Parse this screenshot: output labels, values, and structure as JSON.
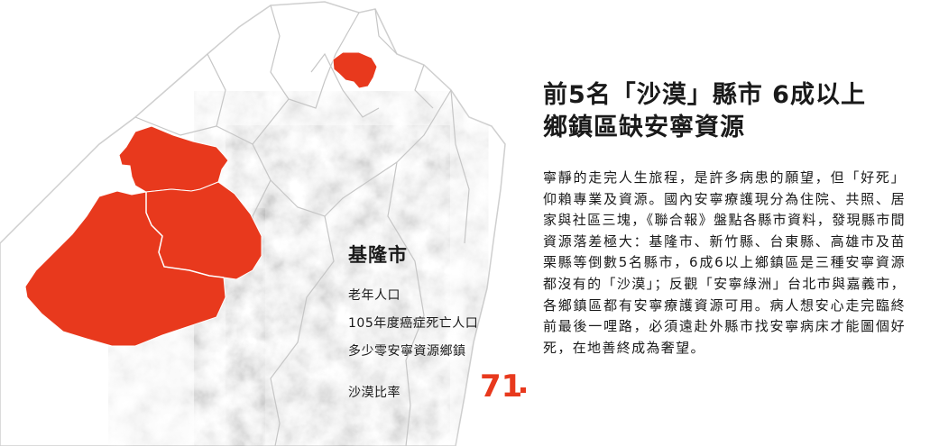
{
  "colors": {
    "highlight": "#e8391d",
    "land": "#ffffff",
    "border": "#c8c8c8",
    "text": "#1a1a1a"
  },
  "infobox": {
    "county": "基隆市",
    "elderly_label": "老年人口",
    "deaths_label": "105年度癌症死亡人口",
    "zero_label": "多少零安寧資源鄉鎮",
    "desert_label": "沙漠比率",
    "desert_value": "71"
  },
  "article": {
    "headline_line1": "前5名「沙漠」縣市 6成以上",
    "headline_line2": "鄉鎮區缺安寧資源",
    "body": "寧靜的走完人生旅程，是許多病患的願望，但「好死」仰賴專業及資源。國內安寧療護現分為住院、共照、居家與社區三塊，《聯合報》盤點各縣市資料，發現縣市間資源落差極大：基隆市、新竹縣、台東縣、高雄市及苗栗縣等倒數5名縣市，6成6以上鄉鎮區是三種安寧資源都沒有的「沙漠」；反觀「安寧綠洲」台北市與嘉義市，各鄉鎮區都有安寧療護資源可用。病人想安心走完臨終前最後一哩路，必須遠赴外縣市找安寧病床才能圖個好死，在地善終成為奢望。"
  }
}
